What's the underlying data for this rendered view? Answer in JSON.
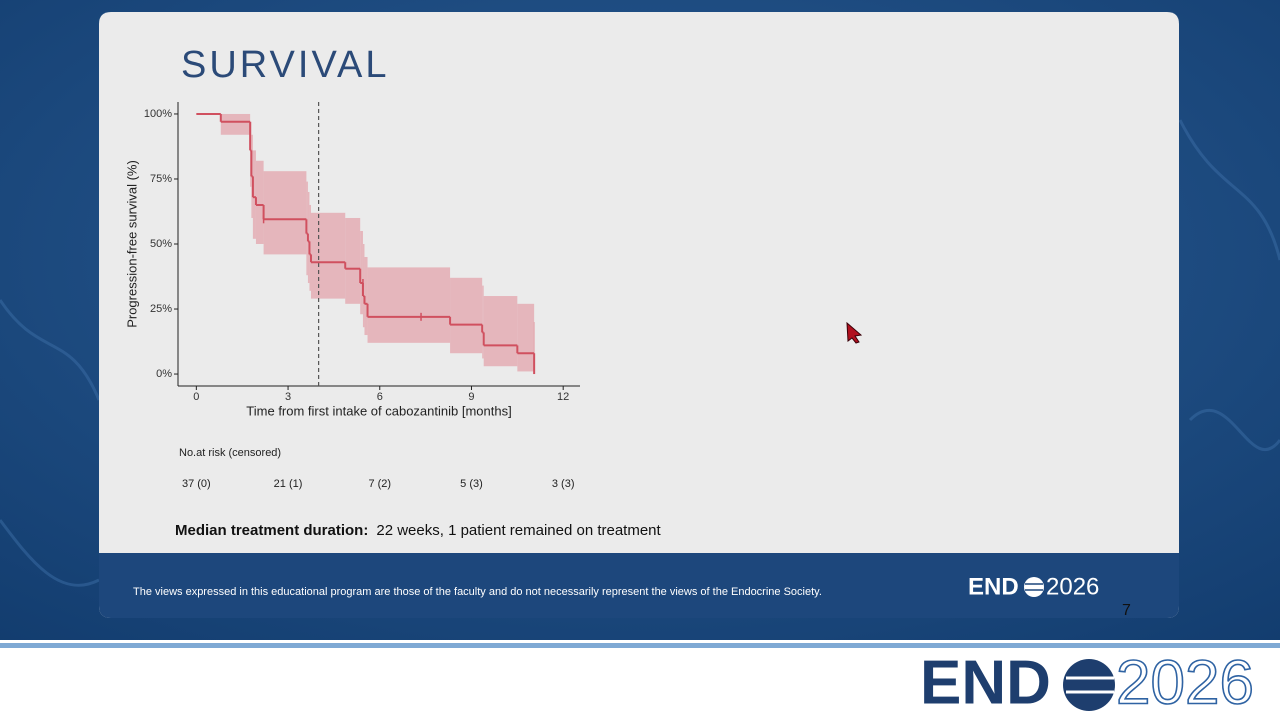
{
  "slide": {
    "title": "SURVIVAL",
    "risk_table": {
      "title": "No.at risk (censored)",
      "entries": [
        "37 (0)",
        "21 (1)",
        "7 (2)",
        "5 (3)",
        "3 (3)"
      ]
    },
    "median_label": "Median treatment duration:",
    "median_text": "22 weeks, 1 patient remained on treatment",
    "disclaimer": "The views expressed in this educational program are those of the faculty and do not necessarily represent the views of the Endocrine Society.",
    "logo": {
      "left": "END",
      "right": "2026"
    },
    "page_number": "7"
  },
  "chart_data": {
    "type": "step",
    "x_label": "Time from first intake of cabozantinib [months]",
    "y_label": "Progression-free survival (%)",
    "x": [
      0,
      0.8,
      1.76,
      1.8,
      1.85,
      1.95,
      2.2,
      3.6,
      3.65,
      3.7,
      3.75,
      4.87,
      5.36,
      5.45,
      5.5,
      5.6,
      8.3,
      9.35,
      9.4,
      10.5,
      11.05
    ],
    "values": [
      100,
      97,
      86,
      76,
      68,
      65,
      59.5,
      54,
      51,
      46,
      43,
      40.5,
      35,
      30,
      27,
      22,
      19,
      16,
      11,
      8,
      0
    ],
    "ci_upper": [
      100,
      100,
      97,
      92,
      86,
      82,
      78,
      74,
      70,
      65,
      62,
      60,
      55,
      50,
      45,
      41,
      37,
      34,
      30,
      27,
      20
    ],
    "ci_lower": [
      100,
      92,
      72,
      60,
      52,
      50,
      46,
      38,
      35,
      32,
      29,
      27,
      23,
      18,
      15,
      12,
      8,
      6,
      3,
      1,
      0
    ],
    "censored_x": [
      2.2,
      5.45,
      7.35
    ],
    "censored_values": [
      59.5,
      35,
      22
    ],
    "reference_x": 4,
    "color": "#d0505f",
    "band_color": "#e3a4ac",
    "xlim": [
      -0.6,
      12.55
    ],
    "xticks": [
      0,
      3,
      6,
      9,
      12
    ],
    "ylim": [
      -4.6,
      104.6
    ],
    "yticks": [
      {
        "value": 0,
        "label": "0%"
      },
      {
        "value": 25,
        "label": "25%"
      },
      {
        "value": 50,
        "label": "50%"
      },
      {
        "value": 75,
        "label": "75%"
      },
      {
        "value": 100,
        "label": "100%"
      }
    ]
  }
}
